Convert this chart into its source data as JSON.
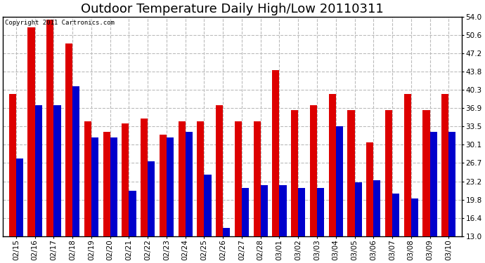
{
  "title": "Outdoor Temperature Daily High/Low 20110311",
  "copyright_text": "Copyright 2011 Cartronics.com",
  "dates": [
    "02/15",
    "02/16",
    "02/17",
    "02/18",
    "02/19",
    "02/20",
    "02/21",
    "02/22",
    "02/23",
    "02/24",
    "02/25",
    "02/26",
    "02/27",
    "02/28",
    "03/01",
    "03/02",
    "03/03",
    "03/04",
    "03/05",
    "03/06",
    "03/07",
    "03/08",
    "03/09",
    "03/10"
  ],
  "highs": [
    39.5,
    52.0,
    53.5,
    49.0,
    34.5,
    32.5,
    34.0,
    35.0,
    32.0,
    34.5,
    34.5,
    37.5,
    34.5,
    34.5,
    44.0,
    36.5,
    37.5,
    39.5,
    36.5,
    30.5,
    36.5,
    39.5,
    36.5,
    39.5
  ],
  "lows": [
    27.5,
    37.5,
    37.5,
    41.0,
    31.5,
    31.5,
    21.5,
    27.0,
    31.5,
    32.5,
    24.5,
    14.5,
    22.0,
    22.5,
    22.5,
    22.0,
    22.0,
    33.5,
    23.0,
    23.5,
    21.0,
    20.0,
    32.5,
    32.5
  ],
  "high_color": "#dd0000",
  "low_color": "#0000cc",
  "background_color": "#ffffff",
  "grid_color": "#bbbbbb",
  "yticks": [
    13.0,
    16.4,
    19.8,
    23.2,
    26.7,
    30.1,
    33.5,
    36.9,
    40.3,
    43.8,
    47.2,
    50.6,
    54.0
  ],
  "ymin": 13.0,
  "ymax": 54.0,
  "bar_width": 0.38,
  "title_fontsize": 13,
  "tick_fontsize": 7.5
}
